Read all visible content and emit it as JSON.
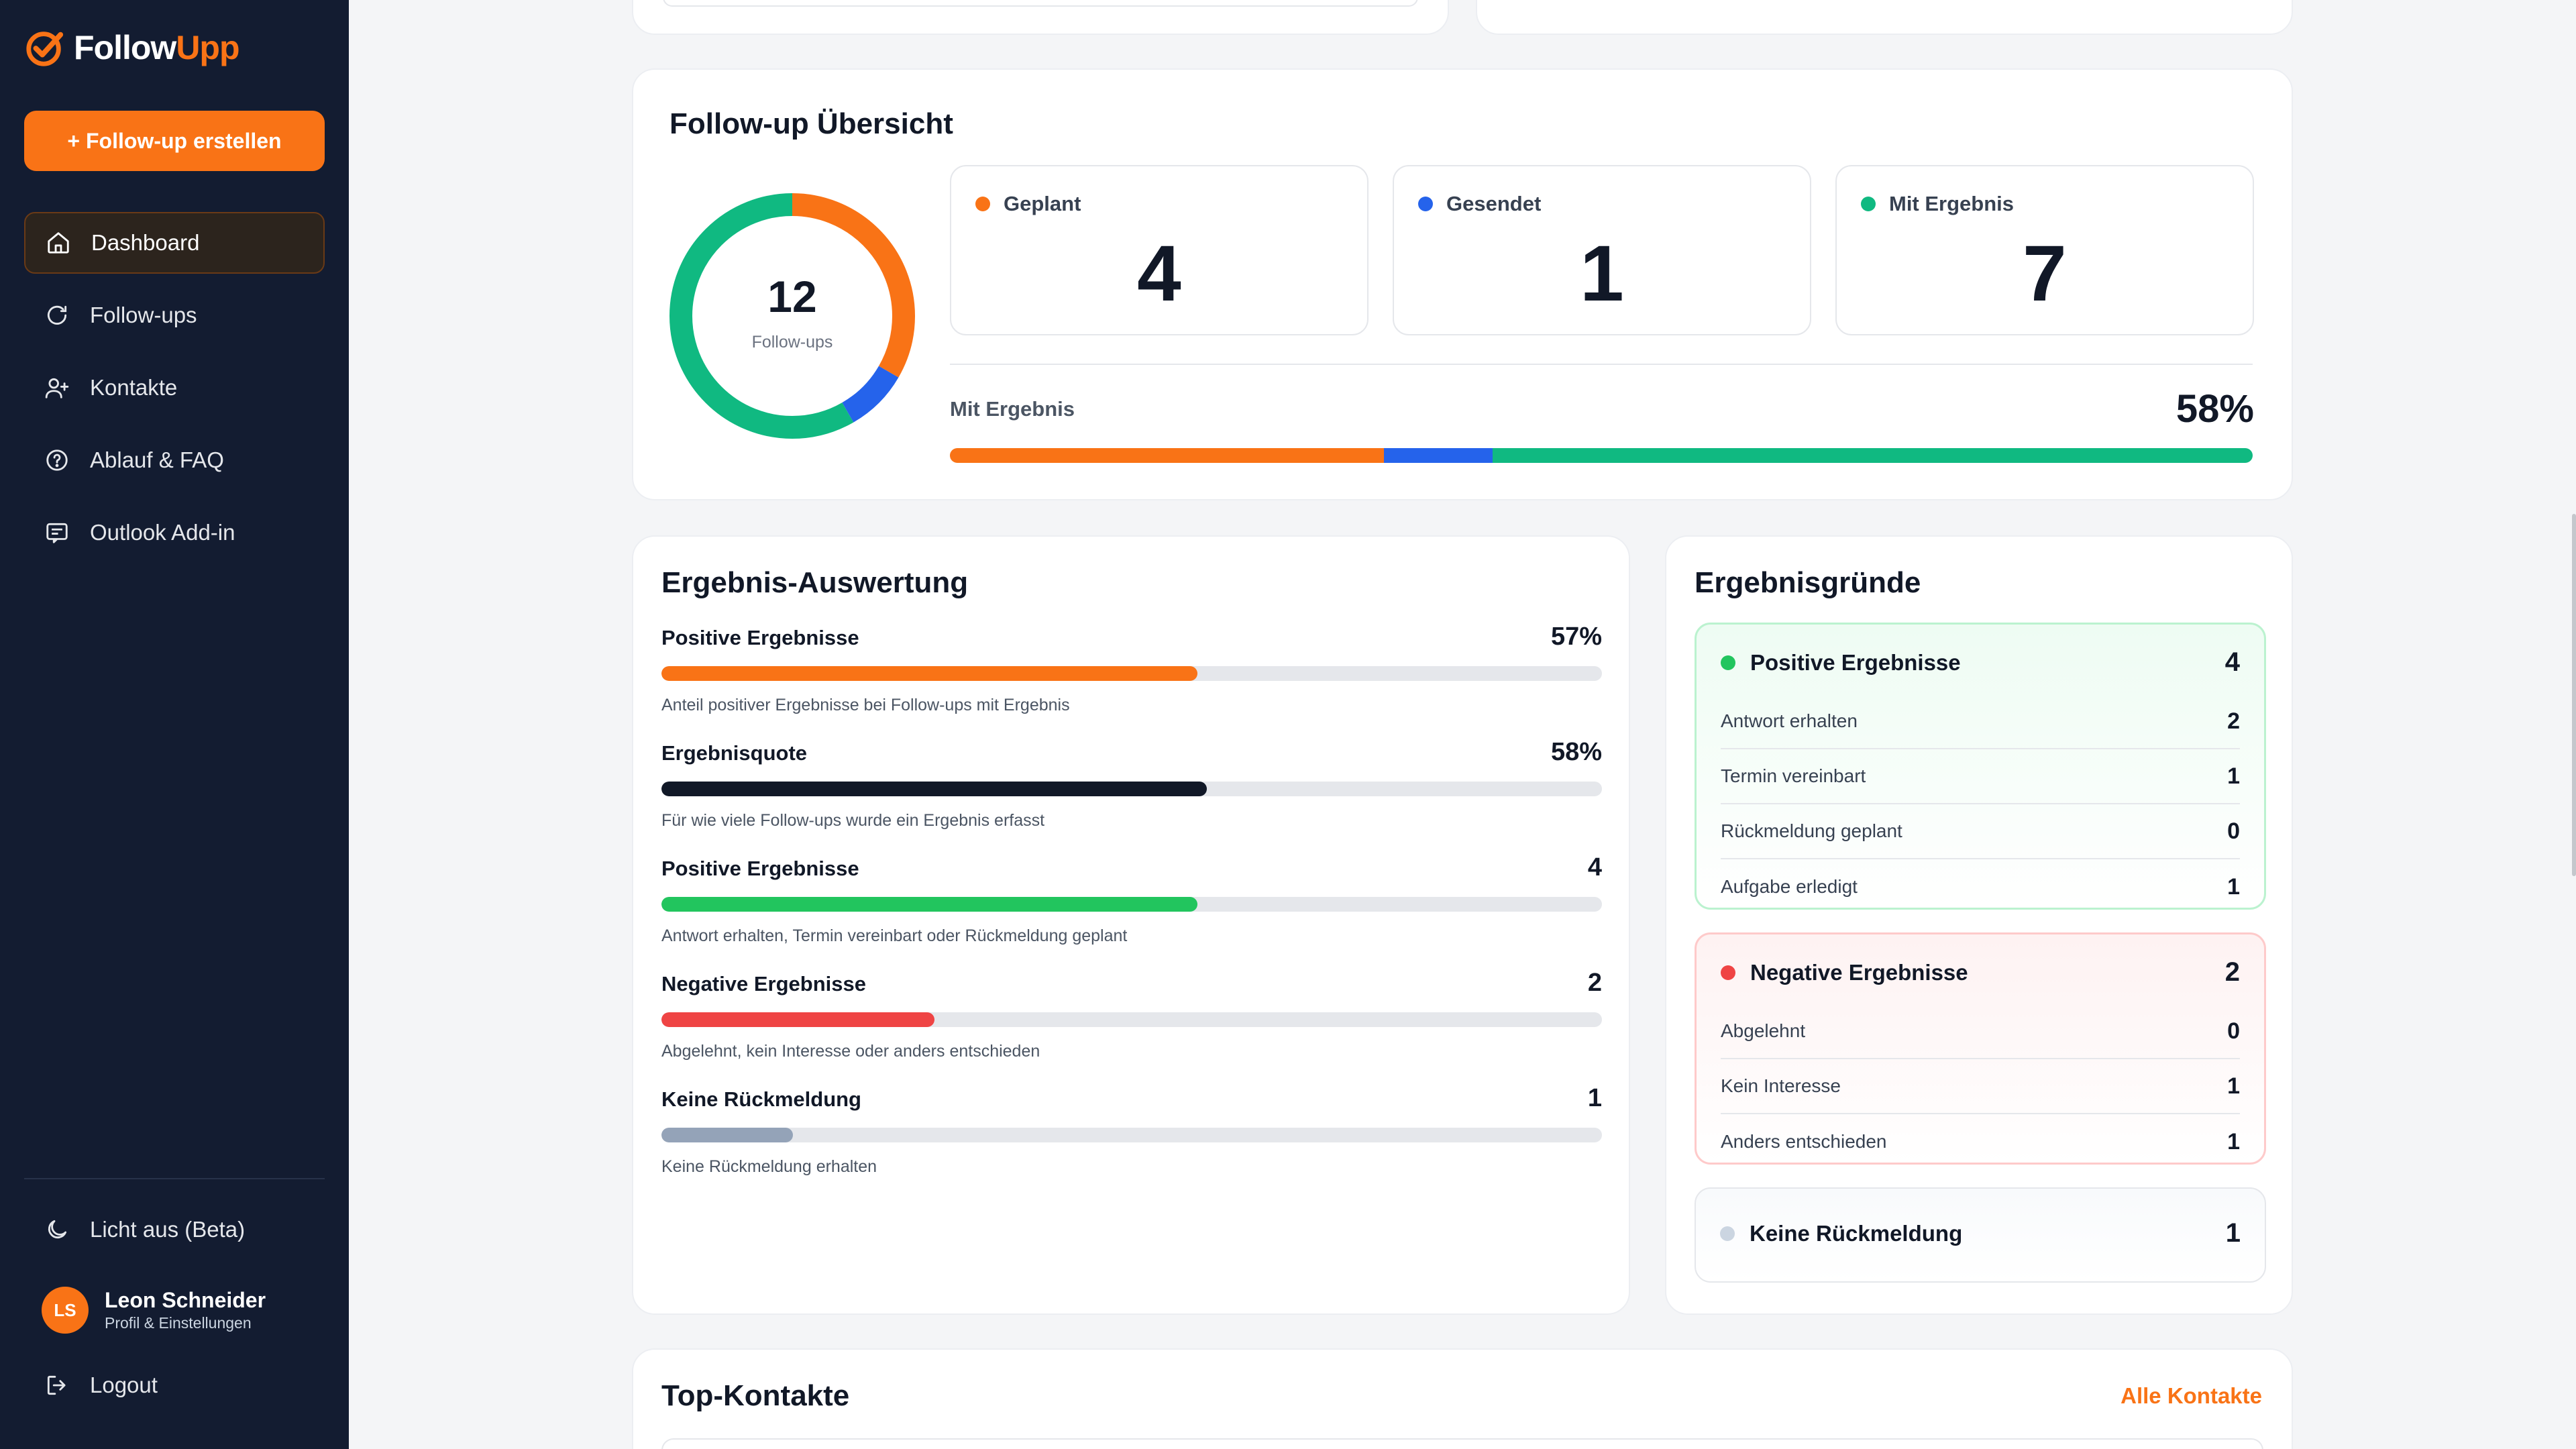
{
  "app": {
    "logo_part1": "Follow",
    "logo_part2": "Upp",
    "create_button": "+ Follow-up erstellen"
  },
  "nav": [
    {
      "label": "Dashboard",
      "icon": "home-icon",
      "active": true
    },
    {
      "label": "Follow-ups",
      "icon": "refresh-icon",
      "active": false
    },
    {
      "label": "Kontakte",
      "icon": "user-plus-icon",
      "active": false
    },
    {
      "label": "Ablauf & FAQ",
      "icon": "help-circle-icon",
      "active": false
    },
    {
      "label": "Outlook Add-in",
      "icon": "mail-icon",
      "active": false
    }
  ],
  "sidebar_bottom": {
    "theme_toggle": "Licht aus (Beta)",
    "user_initials": "LS",
    "user_name": "Leon Schneider",
    "user_sub": "Profil & Einstellungen",
    "logout": "Logout"
  },
  "overview": {
    "title": "Follow-up Übersicht",
    "total": "12",
    "total_label": "Follow-ups",
    "stats": [
      {
        "label": "Geplant",
        "value": 4,
        "color": "#f97316"
      },
      {
        "label": "Gesendet",
        "value": 1,
        "color": "#2563eb"
      },
      {
        "label": "Mit Ergebnis",
        "value": 7,
        "color": "#10b981"
      }
    ],
    "result_label": "Mit Ergebnis",
    "result_pct": "58%"
  },
  "evaluation": {
    "title": "Ergebnis-Auswertung",
    "metrics": [
      {
        "label": "Positive Ergebnisse",
        "value": "57%",
        "fraction": 0.57,
        "color": "#f97316",
        "desc": "Anteil positiver Ergebnisse bei Follow-ups mit Ergebnis"
      },
      {
        "label": "Ergebnisquote",
        "value": "58%",
        "fraction": 0.58,
        "color": "#111827",
        "desc": "Für wie viele Follow-ups wurde ein Ergebnis erfasst"
      },
      {
        "label": "Positive Ergebnisse",
        "value": "4",
        "fraction": 0.57,
        "color": "#22c55e",
        "desc": "Antwort erhalten, Termin vereinbart oder Rückmeldung geplant"
      },
      {
        "label": "Negative Ergebnisse",
        "value": "2",
        "fraction": 0.29,
        "color": "#ef4444",
        "desc": "Abgelehnt, kein Interesse oder anders entschieden"
      },
      {
        "label": "Keine Rückmeldung",
        "value": "1",
        "fraction": 0.14,
        "color": "#94a3b8",
        "desc": "Keine Rückmeldung erhalten"
      }
    ]
  },
  "reasons": {
    "title": "Ergebnisgründe",
    "positive": {
      "label": "Positive Ergebnisse",
      "total": "4",
      "color": "#22c55e",
      "rows": [
        {
          "label": "Antwort erhalten",
          "value": "2"
        },
        {
          "label": "Termin vereinbart",
          "value": "1"
        },
        {
          "label": "Rückmeldung geplant",
          "value": "0"
        },
        {
          "label": "Aufgabe erledigt",
          "value": "1"
        }
      ]
    },
    "negative": {
      "label": "Negative Ergebnisse",
      "total": "2",
      "color": "#ef4444",
      "rows": [
        {
          "label": "Abgelehnt",
          "value": "0"
        },
        {
          "label": "Kein Interesse",
          "value": "1"
        },
        {
          "label": "Anders entschieden",
          "value": "1"
        }
      ]
    },
    "none": {
      "label": "Keine Rückmeldung",
      "total": "1",
      "color": "#cbd5e1"
    }
  },
  "top_contacts": {
    "title": "Top-Kontakte",
    "link": "Alle Kontakte"
  }
}
